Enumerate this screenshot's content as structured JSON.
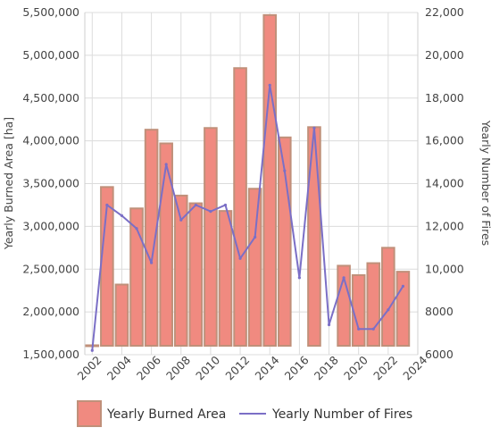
{
  "chart_data": {
    "type": "bar",
    "combo": true,
    "x": [
      2002,
      2003,
      2004,
      2005,
      2006,
      2007,
      2008,
      2009,
      2010,
      2011,
      2012,
      2013,
      2014,
      2015,
      2016,
      2017,
      2018,
      2019,
      2020,
      2021,
      2022,
      2023
    ],
    "x_tick_labels": [
      "2002",
      "2004",
      "2006",
      "2008",
      "2010",
      "2012",
      "2014",
      "2016",
      "2018",
      "2020",
      "2022",
      "2024"
    ],
    "series": [
      {
        "name": "Yearly Burned Area",
        "type": "bar",
        "axis": "left",
        "color": "#f08a80",
        "edge_color": "#c0907a",
        "values": [
          1610000,
          3460000,
          2320000,
          3210000,
          4130000,
          3970000,
          3360000,
          3270000,
          4150000,
          3180000,
          4850000,
          3440000,
          5470000,
          4040000,
          null,
          4160000,
          null,
          2540000,
          2430000,
          2570000,
          2750000,
          2470000
        ]
      },
      {
        "name": "Yearly Number of Fires",
        "type": "line",
        "axis": "right",
        "color": "#7b6fc6",
        "values": [
          6200,
          13000,
          12500,
          11900,
          10300,
          14900,
          12300,
          13000,
          12700,
          13000,
          10500,
          11500,
          18600,
          14600,
          9600,
          16600,
          7400,
          9600,
          7200,
          7200,
          8100,
          9200
        ]
      }
    ],
    "y_left": {
      "label": "Yearly Burned Area [ha]",
      "range": [
        1500000,
        5500000
      ],
      "ticks": [
        1500000,
        2000000,
        2500000,
        3000000,
        3500000,
        4000000,
        4500000,
        5000000,
        5500000
      ],
      "tick_labels": [
        "1,500,000",
        "2,000,000",
        "2,500,000",
        "3,000,000",
        "3,500,000",
        "4,000,000",
        "4,500,000",
        "5,000,000",
        "5,500,000"
      ]
    },
    "y_right": {
      "label": "Yearly Number of Fires",
      "range": [
        6000,
        22000
      ],
      "ticks": [
        6000,
        8000,
        10000,
        12000,
        14000,
        16000,
        18000,
        20000,
        22000
      ],
      "tick_labels": [
        "6000",
        "8000",
        "10,000",
        "12,000",
        "14,000",
        "16,000",
        "18,000",
        "20,000",
        "22,000"
      ]
    },
    "x_range": [
      2001.5,
      2024
    ],
    "grid": true,
    "legend": "bottom"
  }
}
